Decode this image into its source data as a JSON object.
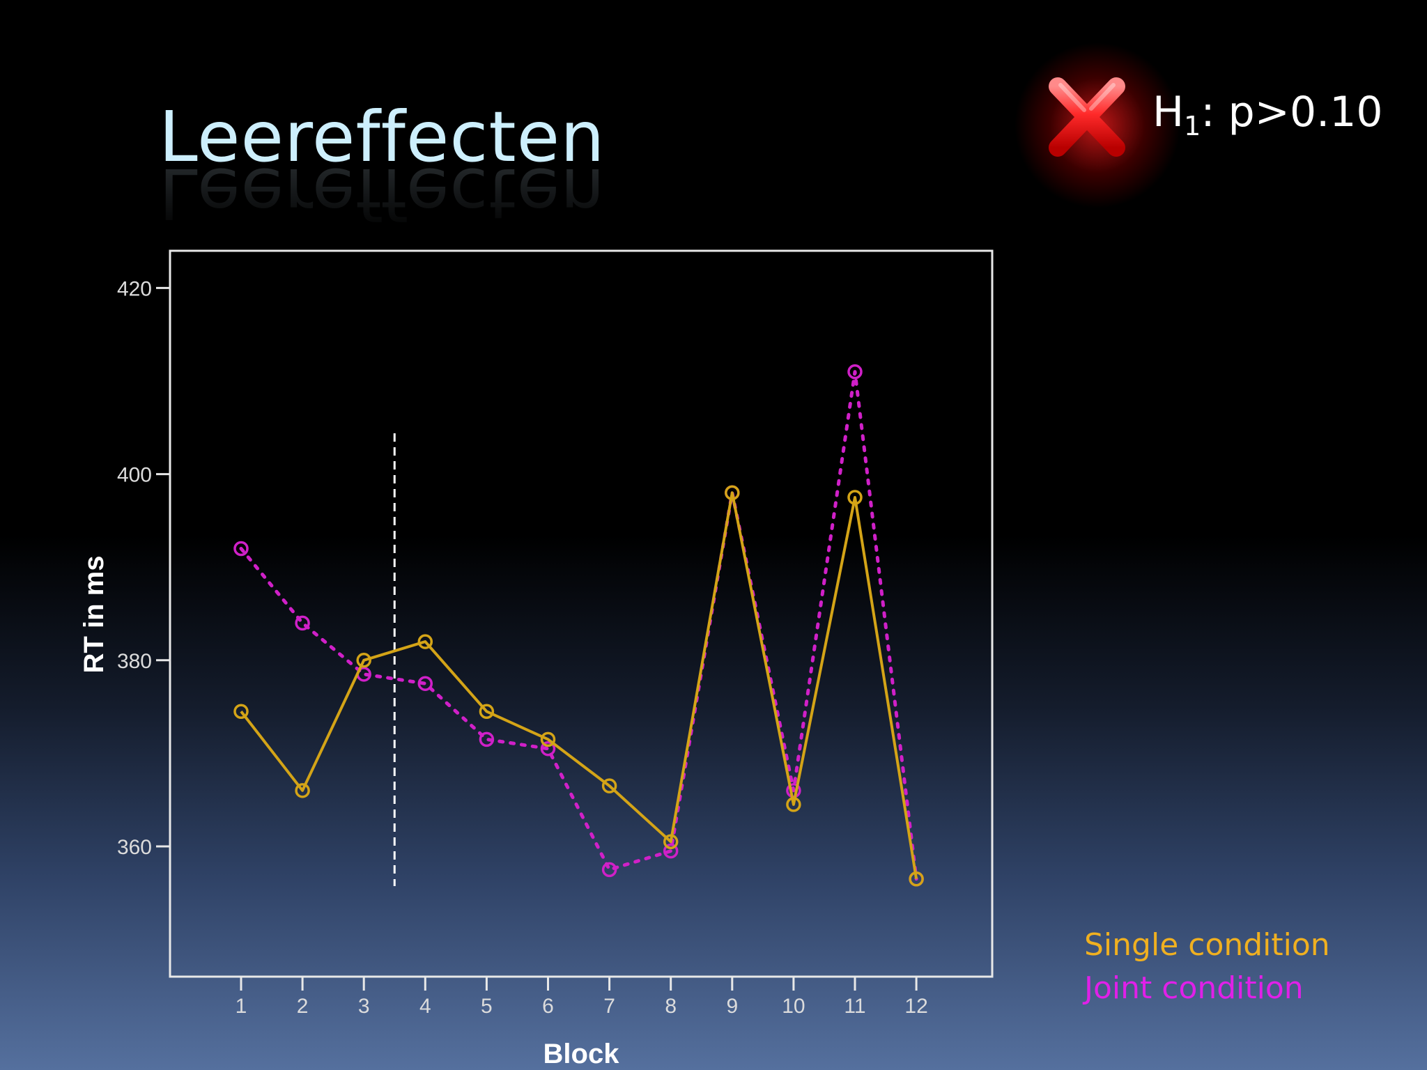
{
  "slide": {
    "title": "Leereffecten",
    "hypothesis_main": "H",
    "hypothesis_sub": "1",
    "hypothesis_rest": ": p>0.10",
    "status_icon": "red-x-icon"
  },
  "legend": {
    "single": "Single condition",
    "joint": "Joint condition"
  },
  "colors": {
    "single": "#d4a417",
    "joint": "#d020c8",
    "divider": "#ffffff"
  },
  "chart_data": {
    "type": "line",
    "xlabel": "Block",
    "ylabel": "RT in ms",
    "categories": [
      "1",
      "2",
      "3",
      "4",
      "5",
      "6",
      "7",
      "8",
      "9",
      "10",
      "11",
      "12"
    ],
    "yticks": [
      "360",
      "380",
      "400",
      "420"
    ],
    "ylim": [
      346,
      424
    ],
    "series": [
      {
        "name": "Single condition",
        "line_style": "solid",
        "values": [
          374.5,
          366,
          380,
          382,
          374.5,
          371.5,
          366.5,
          360.5,
          398,
          364.5,
          397.5,
          356.5
        ]
      },
      {
        "name": "Joint condition",
        "line_style": "dotted",
        "values": [
          392,
          384,
          378.5,
          377.5,
          371.5,
          370.5,
          357.5,
          359.5,
          398,
          366,
          411,
          356.5
        ]
      }
    ],
    "divider_after_block": 3,
    "grid": false,
    "legend_position": "bottom-right outside plot"
  }
}
